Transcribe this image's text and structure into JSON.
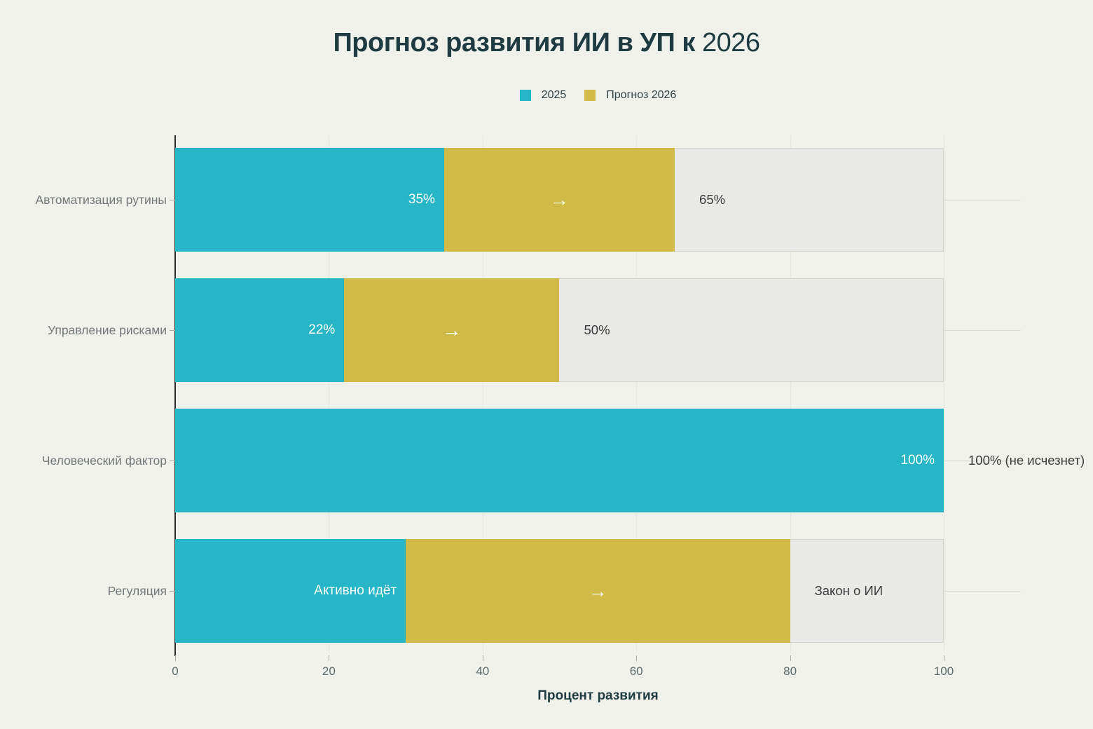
{
  "chart_data": {
    "type": "bar",
    "orientation": "horizontal",
    "stacked": true,
    "title_main": "Прогноз развития ИИ в УП к",
    "title_year": "2026",
    "xlabel": "Процент развития",
    "xlim": [
      0,
      110
    ],
    "x_ticks": [
      0,
      20,
      40,
      60,
      80,
      100
    ],
    "grid": true,
    "legend_position": "top-center",
    "categories": [
      "Автоматизация рутины",
      "Управление рисками",
      "Человеческий фактор",
      "Регуляция"
    ],
    "series": [
      {
        "name": "2025",
        "values": [
          35,
          22,
          100,
          30
        ],
        "bar_labels": [
          "35%",
          "22%",
          "100%",
          "Активно идёт"
        ],
        "color": "#27b5c8"
      },
      {
        "name": "Прогноз 2026",
        "values_end": [
          65,
          50,
          100,
          80
        ],
        "bar_labels": [
          "→",
          "→",
          "",
          "→"
        ],
        "color": "#d2ba48"
      }
    ],
    "outside_labels": [
      "65%",
      "50%",
      "100% (не исчезнет)",
      "Закон о ИИ"
    ],
    "colors": {
      "background": "#f1f1ec",
      "series_2025": "#27b5c8",
      "series_2026": "#d2ba48",
      "track": "#e9e9e7",
      "track_border": "#d8d2cc",
      "title_text": "#1d3b40",
      "category_text": "#73787a",
      "tick_text": "#5c6b6d",
      "outside_label_text": "#3b3b3b",
      "inside_label_text": "#ffffff",
      "grid_vertical": "#e7e7e0",
      "grid_horizontal": "#dcdcd5",
      "axis_line": "#2d2d2d",
      "tick_mark": "#aeaea8"
    }
  }
}
